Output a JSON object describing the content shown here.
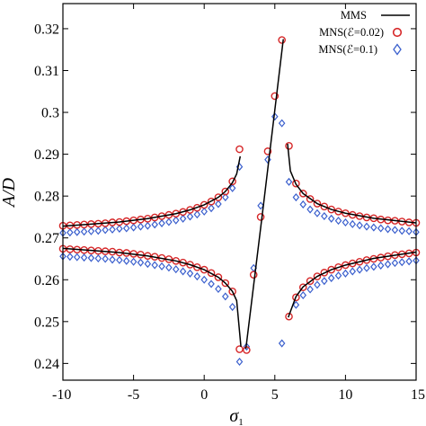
{
  "chart_data": {
    "type": "scatter",
    "title": "",
    "xlabel": "σ",
    "xlabel_subscript": "1",
    "ylabel": "A/D",
    "xlim": [
      -10,
      15
    ],
    "ylim": [
      0.236,
      0.326
    ],
    "xticks": [
      -10,
      -5,
      0,
      5,
      10,
      15
    ],
    "xtick_labels": [
      "-10",
      "-5",
      "0",
      "5",
      "10",
      "15"
    ],
    "yticks": [
      0.24,
      0.25,
      0.26,
      0.27,
      0.28,
      0.29,
      0.3,
      0.31,
      0.32
    ],
    "ytick_labels": [
      "0.24",
      "0.25",
      "0.26",
      "0.27",
      "0.28",
      "0.29",
      "0.3",
      "0.31",
      "0.32"
    ],
    "grid": false,
    "legend_position": "top-right",
    "colors": {
      "mms": "#000000",
      "mns_002": "#d62728",
      "mns_01": "#3a5fcd"
    },
    "series": [
      {
        "name": "MMS",
        "kind": "line",
        "segments": [
          [
            [
              -10,
              0.2728
            ],
            [
              -8,
              0.2733
            ],
            [
              -6,
              0.2738
            ],
            [
              -4,
              0.2746
            ],
            [
              -2,
              0.2758
            ],
            [
              -1,
              0.2767
            ],
            [
              0,
              0.2779
            ],
            [
              1,
              0.2797
            ],
            [
              1.5,
              0.2811
            ],
            [
              2,
              0.2832
            ],
            [
              2.3,
              0.2853
            ],
            [
              2.55,
              0.2895
            ]
          ],
          [
            [
              -10,
              0.2675
            ],
            [
              -8,
              0.267
            ],
            [
              -6,
              0.2665
            ],
            [
              -4,
              0.2657
            ],
            [
              -2,
              0.2645
            ],
            [
              -1,
              0.2636
            ],
            [
              0,
              0.2624
            ],
            [
              1,
              0.2606
            ],
            [
              1.5,
              0.2592
            ],
            [
              2,
              0.2572
            ],
            [
              2.3,
              0.255
            ],
            [
              2.6,
              0.244
            ]
          ],
          [
            [
              2.95,
              0.2435
            ],
            [
              4.2,
              0.278
            ],
            [
              5.6,
              0.3175
            ]
          ],
          [
            [
              5.9,
              0.2925
            ],
            [
              6.1,
              0.286
            ],
            [
              6.5,
              0.2828
            ],
            [
              7,
              0.2806
            ],
            [
              8,
              0.2782
            ],
            [
              9,
              0.2768
            ],
            [
              10,
              0.2759
            ],
            [
              12,
              0.2747
            ],
            [
              15,
              0.2736
            ]
          ],
          [
            [
              5.95,
              0.251
            ],
            [
              6.5,
              0.256
            ],
            [
              7,
              0.2583
            ],
            [
              8,
              0.2608
            ],
            [
              9,
              0.2624
            ],
            [
              10,
              0.2635
            ],
            [
              12,
              0.2651
            ],
            [
              15,
              0.2666
            ]
          ]
        ]
      },
      {
        "name": "MNS(ℰ=0.02)",
        "kind": "circle",
        "points": [
          [
            -10,
            0.2729
          ],
          [
            -9.5,
            0.273
          ],
          [
            -9,
            0.2731
          ],
          [
            -8.5,
            0.2732
          ],
          [
            -8,
            0.2733
          ],
          [
            -7.5,
            0.2734
          ],
          [
            -7,
            0.2735
          ],
          [
            -6.5,
            0.2737
          ],
          [
            -6,
            0.2738
          ],
          [
            -5.5,
            0.274
          ],
          [
            -5,
            0.2742
          ],
          [
            -4.5,
            0.2744
          ],
          [
            -4,
            0.2746
          ],
          [
            -3.5,
            0.2749
          ],
          [
            -3,
            0.2752
          ],
          [
            -2.5,
            0.2755
          ],
          [
            -2,
            0.2758
          ],
          [
            -1.5,
            0.2762
          ],
          [
            -1,
            0.2767
          ],
          [
            -0.5,
            0.2772
          ],
          [
            0,
            0.2779
          ],
          [
            0.5,
            0.2787
          ],
          [
            1,
            0.2797
          ],
          [
            1.5,
            0.2811
          ],
          [
            2,
            0.2835
          ],
          [
            2.5,
            0.2912
          ],
          [
            -10,
            0.2674
          ],
          [
            -9.5,
            0.2673
          ],
          [
            -9,
            0.2672
          ],
          [
            -8.5,
            0.2671
          ],
          [
            -8,
            0.267
          ],
          [
            -7.5,
            0.2669
          ],
          [
            -7,
            0.2668
          ],
          [
            -6.5,
            0.2667
          ],
          [
            -6,
            0.2665
          ],
          [
            -5.5,
            0.2664
          ],
          [
            -5,
            0.2662
          ],
          [
            -4.5,
            0.266
          ],
          [
            -4,
            0.2657
          ],
          [
            -3.5,
            0.2655
          ],
          [
            -3,
            0.2652
          ],
          [
            -2.5,
            0.2649
          ],
          [
            -2,
            0.2645
          ],
          [
            -1.5,
            0.2641
          ],
          [
            -1,
            0.2636
          ],
          [
            -0.5,
            0.263
          ],
          [
            0,
            0.2624
          ],
          [
            0.5,
            0.2616
          ],
          [
            1,
            0.2606
          ],
          [
            1.5,
            0.2592
          ],
          [
            2,
            0.2572
          ],
          [
            2.5,
            0.2434
          ],
          [
            3,
            0.2432
          ],
          [
            3.5,
            0.2612
          ],
          [
            4,
            0.275
          ],
          [
            4.5,
            0.2907
          ],
          [
            5,
            0.3039
          ],
          [
            5.5,
            0.3173
          ],
          [
            6,
            0.292
          ],
          [
            6.5,
            0.283
          ],
          [
            7,
            0.2806
          ],
          [
            7.5,
            0.2793
          ],
          [
            8,
            0.2782
          ],
          [
            8.5,
            0.2775
          ],
          [
            9,
            0.2768
          ],
          [
            9.5,
            0.2763
          ],
          [
            10,
            0.2759
          ],
          [
            10.5,
            0.2755
          ],
          [
            11,
            0.2752
          ],
          [
            11.5,
            0.2749
          ],
          [
            12,
            0.2747
          ],
          [
            12.5,
            0.2744
          ],
          [
            13,
            0.2742
          ],
          [
            13.5,
            0.2741
          ],
          [
            14,
            0.2739
          ],
          [
            14.5,
            0.2737
          ],
          [
            15,
            0.2736
          ],
          [
            6,
            0.2512
          ],
          [
            6.5,
            0.2558
          ],
          [
            7,
            0.2582
          ],
          [
            7.5,
            0.2597
          ],
          [
            8,
            0.2608
          ],
          [
            8.5,
            0.2617
          ],
          [
            9,
            0.2624
          ],
          [
            9.5,
            0.263
          ],
          [
            10,
            0.2635
          ],
          [
            10.5,
            0.2639
          ],
          [
            11,
            0.2643
          ],
          [
            11.5,
            0.2647
          ],
          [
            12,
            0.265
          ],
          [
            12.5,
            0.2653
          ],
          [
            13,
            0.2656
          ],
          [
            13.5,
            0.2659
          ],
          [
            14,
            0.2661
          ],
          [
            14.5,
            0.2663
          ],
          [
            15,
            0.2665
          ]
        ]
      },
      {
        "name": "MNS(ℰ=0.1)",
        "kind": "diamond",
        "points": [
          [
            -10,
            0.2712
          ],
          [
            -9.5,
            0.2713
          ],
          [
            -9,
            0.2714
          ],
          [
            -8.5,
            0.2715
          ],
          [
            -8,
            0.2716
          ],
          [
            -7.5,
            0.2717
          ],
          [
            -7,
            0.2719
          ],
          [
            -6.5,
            0.272
          ],
          [
            -6,
            0.2722
          ],
          [
            -5.5,
            0.2723
          ],
          [
            -5,
            0.2725
          ],
          [
            -4.5,
            0.2727
          ],
          [
            -4,
            0.2729
          ],
          [
            -3.5,
            0.2732
          ],
          [
            -3,
            0.2735
          ],
          [
            -2.5,
            0.2738
          ],
          [
            -2,
            0.2742
          ],
          [
            -1.5,
            0.2746
          ],
          [
            -1,
            0.2751
          ],
          [
            -0.5,
            0.2756
          ],
          [
            0,
            0.2763
          ],
          [
            0.5,
            0.2771
          ],
          [
            1,
            0.2781
          ],
          [
            1.5,
            0.2797
          ],
          [
            2,
            0.2819
          ],
          [
            2.5,
            0.287
          ],
          [
            -10,
            0.2656
          ],
          [
            -9.5,
            0.2655
          ],
          [
            -9,
            0.2654
          ],
          [
            -8.5,
            0.2653
          ],
          [
            -8,
            0.2652
          ],
          [
            -7.5,
            0.2651
          ],
          [
            -7,
            0.265
          ],
          [
            -6.5,
            0.2648
          ],
          [
            -6,
            0.2647
          ],
          [
            -5.5,
            0.2645
          ],
          [
            -5,
            0.2643
          ],
          [
            -4.5,
            0.2641
          ],
          [
            -4,
            0.2638
          ],
          [
            -3.5,
            0.2635
          ],
          [
            -3,
            0.2632
          ],
          [
            -2.5,
            0.2629
          ],
          [
            -2,
            0.2625
          ],
          [
            -1.5,
            0.262
          ],
          [
            -1,
            0.2615
          ],
          [
            -0.5,
            0.2608
          ],
          [
            0,
            0.26
          ],
          [
            0.5,
            0.259
          ],
          [
            1,
            0.2578
          ],
          [
            1.5,
            0.256
          ],
          [
            2,
            0.2535
          ],
          [
            2.5,
            0.2404
          ],
          [
            3,
            0.244
          ],
          [
            3.5,
            0.2628
          ],
          [
            4,
            0.2777
          ],
          [
            4.5,
            0.2887
          ],
          [
            5,
            0.299
          ],
          [
            5.5,
            0.2974
          ],
          [
            6,
            0.2834
          ],
          [
            6.5,
            0.2797
          ],
          [
            7,
            0.278
          ],
          [
            7.5,
            0.2768
          ],
          [
            8,
            0.2759
          ],
          [
            8.5,
            0.2752
          ],
          [
            9,
            0.2746
          ],
          [
            9.5,
            0.2741
          ],
          [
            10,
            0.2737
          ],
          [
            10.5,
            0.2733
          ],
          [
            11,
            0.273
          ],
          [
            11.5,
            0.2727
          ],
          [
            12,
            0.2725
          ],
          [
            12.5,
            0.2723
          ],
          [
            13,
            0.2721
          ],
          [
            13.5,
            0.2719
          ],
          [
            14,
            0.2717
          ],
          [
            14.5,
            0.2716
          ],
          [
            15,
            0.2714
          ],
          [
            5.5,
            0.2448
          ],
          [
            6.5,
            0.254
          ],
          [
            7,
            0.2563
          ],
          [
            7.5,
            0.2577
          ],
          [
            8,
            0.2588
          ],
          [
            8.5,
            0.2597
          ],
          [
            9,
            0.2604
          ],
          [
            9.5,
            0.261
          ],
          [
            10,
            0.2615
          ],
          [
            10.5,
            0.262
          ],
          [
            11,
            0.2624
          ],
          [
            11.5,
            0.2628
          ],
          [
            12,
            0.2631
          ],
          [
            12.5,
            0.2634
          ],
          [
            13,
            0.2637
          ],
          [
            13.5,
            0.264
          ],
          [
            14,
            0.2642
          ],
          [
            14.5,
            0.2644
          ],
          [
            15,
            0.2646
          ]
        ]
      }
    ]
  }
}
